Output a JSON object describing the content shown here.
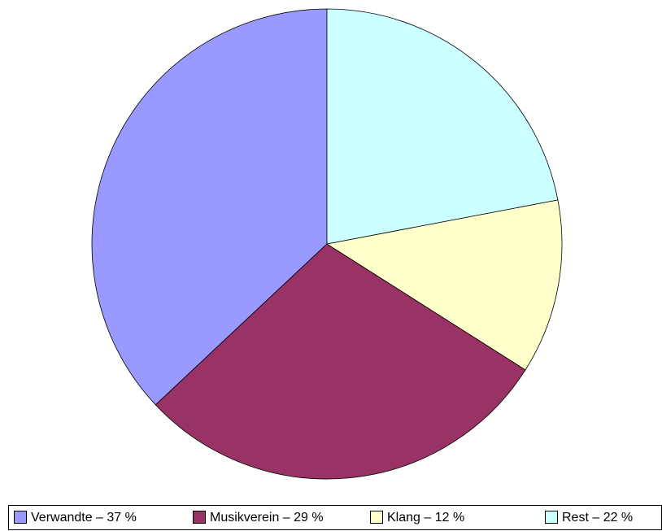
{
  "chart_data": {
    "type": "pie",
    "categories": [
      "Verwandte – 37 %",
      "Musikverein – 29 %",
      "Klang – 12 %",
      "Rest – 22 %"
    ],
    "values": [
      37,
      29,
      12,
      22
    ],
    "colors": [
      "#9999ff",
      "#993366",
      "#ffffcc",
      "#ccffff"
    ],
    "legend": "bottom"
  }
}
